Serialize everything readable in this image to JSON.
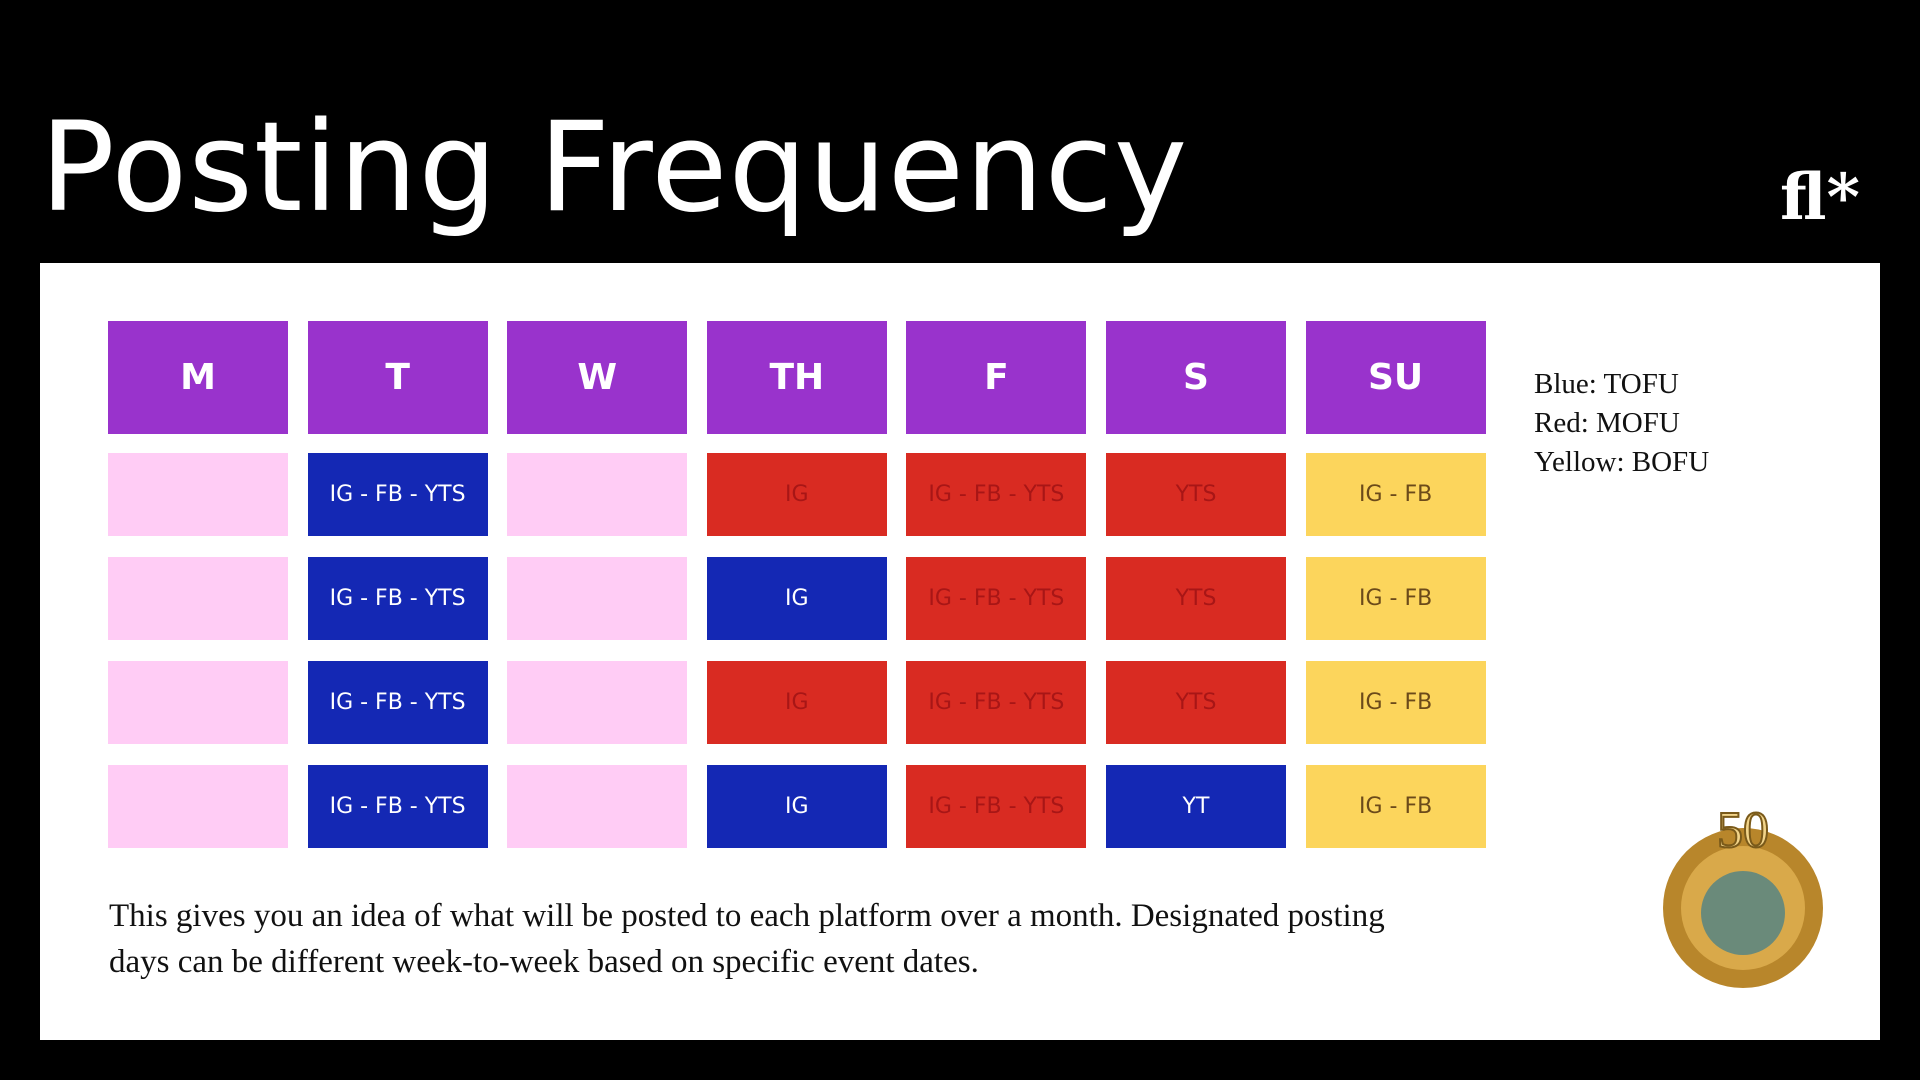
{
  "title": "Posting Frequency",
  "logo": "fl*",
  "days": [
    "M",
    "T",
    "W",
    "TH",
    "F",
    "S",
    "SU"
  ],
  "header_color": "#9933cc",
  "rows": [
    [
      {
        "text": null,
        "fill": "#ffccf5"
      },
      {
        "text": "IG - FB - YTS",
        "fill": "#1428b4",
        "text_color": "#ffffff"
      },
      {
        "text": null,
        "fill": "#ffccf5"
      },
      {
        "text": "IG",
        "fill": "#d92b22",
        "text_color": "#a81616"
      },
      {
        "text": "IG - FB - YTS",
        "fill": "#d92b22",
        "text_color": "#a81616"
      },
      {
        "text": "YTS",
        "fill": "#d92b22",
        "text_color": "#a81616"
      },
      {
        "text": "IG - FB",
        "fill": "#fcd55c",
        "text_color": "#6b4a1a"
      }
    ],
    [
      {
        "text": null,
        "fill": "#ffccf5"
      },
      {
        "text": "IG - FB - YTS",
        "fill": "#1428b4",
        "text_color": "#ffffff"
      },
      {
        "text": null,
        "fill": "#ffccf5"
      },
      {
        "text": "IG",
        "fill": "#1428b4",
        "text_color": "#ffffff"
      },
      {
        "text": "IG - FB - YTS",
        "fill": "#d92b22",
        "text_color": "#a81616"
      },
      {
        "text": "YTS",
        "fill": "#d92b22",
        "text_color": "#a81616"
      },
      {
        "text": "IG - FB",
        "fill": "#fcd55c",
        "text_color": "#6b4a1a"
      }
    ],
    [
      {
        "text": null,
        "fill": "#ffccf5"
      },
      {
        "text": "IG - FB - YTS",
        "fill": "#1428b4",
        "text_color": "#ffffff"
      },
      {
        "text": null,
        "fill": "#ffccf5"
      },
      {
        "text": "IG",
        "fill": "#d92b22",
        "text_color": "#a81616"
      },
      {
        "text": "IG - FB - YTS",
        "fill": "#d92b22",
        "text_color": "#a81616"
      },
      {
        "text": "YTS",
        "fill": "#d92b22",
        "text_color": "#a81616"
      },
      {
        "text": "IG - FB",
        "fill": "#fcd55c",
        "text_color": "#6b4a1a"
      }
    ],
    [
      {
        "text": null,
        "fill": "#ffccf5"
      },
      {
        "text": "IG - FB - YTS",
        "fill": "#1428b4",
        "text_color": "#ffffff"
      },
      {
        "text": null,
        "fill": "#ffccf5"
      },
      {
        "text": "IG",
        "fill": "#1428b4",
        "text_color": "#ffffff"
      },
      {
        "text": "IG - FB - YTS",
        "fill": "#d92b22",
        "text_color": "#a81616"
      },
      {
        "text": "YT",
        "fill": "#1428b4",
        "text_color": "#ffffff"
      },
      {
        "text": "IG - FB",
        "fill": "#fcd55c",
        "text_color": "#6b4a1a"
      }
    ]
  ],
  "legend": [
    "Blue: TOFU",
    "Red: MOFU",
    "Yellow: BOFU"
  ],
  "description": [
    "This gives you an idea of what will be posted to each platform over a month. Designated posting",
    "days can be different week-to-week based on specific event dates."
  ],
  "badge": "50"
}
